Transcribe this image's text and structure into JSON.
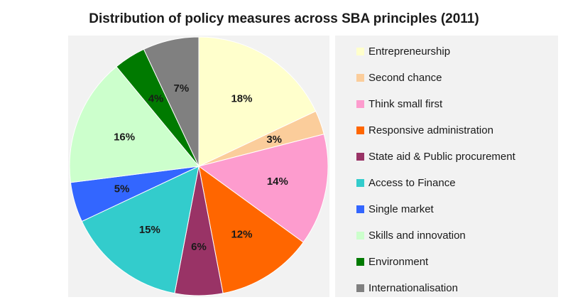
{
  "chart_data": {
    "type": "pie",
    "title": "Distribution of policy measures across SBA principles (2011)",
    "slices": [
      {
        "name": "Entrepreneurship",
        "value": 18,
        "label": "18%",
        "color": "#ffffcc"
      },
      {
        "name": "Second chance",
        "value": 3,
        "label": "3%",
        "color": "#fbcd9b"
      },
      {
        "name": "Think small first",
        "value": 14,
        "label": "14%",
        "color": "#fd9cce"
      },
      {
        "name": "Responsive administration",
        "value": 12,
        "label": "12%",
        "color": "#ff6600"
      },
      {
        "name": "State aid & Public procurement",
        "value": 6,
        "label": "6%",
        "color": "#993366"
      },
      {
        "name": "Access to Finance",
        "value": 15,
        "label": "15%",
        "color": "#33cccc"
      },
      {
        "name": "Single market",
        "value": 5,
        "label": "5%",
        "color": "#3366ff"
      },
      {
        "name": "Skills and innovation",
        "value": 16,
        "label": "16%",
        "color": "#ccffcc"
      },
      {
        "name": "Environment",
        "value": 4,
        "label": "4%",
        "color": "#007a00"
      },
      {
        "name": "Internationalisation",
        "value": 7,
        "label": "7%",
        "color": "#808080"
      }
    ],
    "legend_position": "right"
  }
}
